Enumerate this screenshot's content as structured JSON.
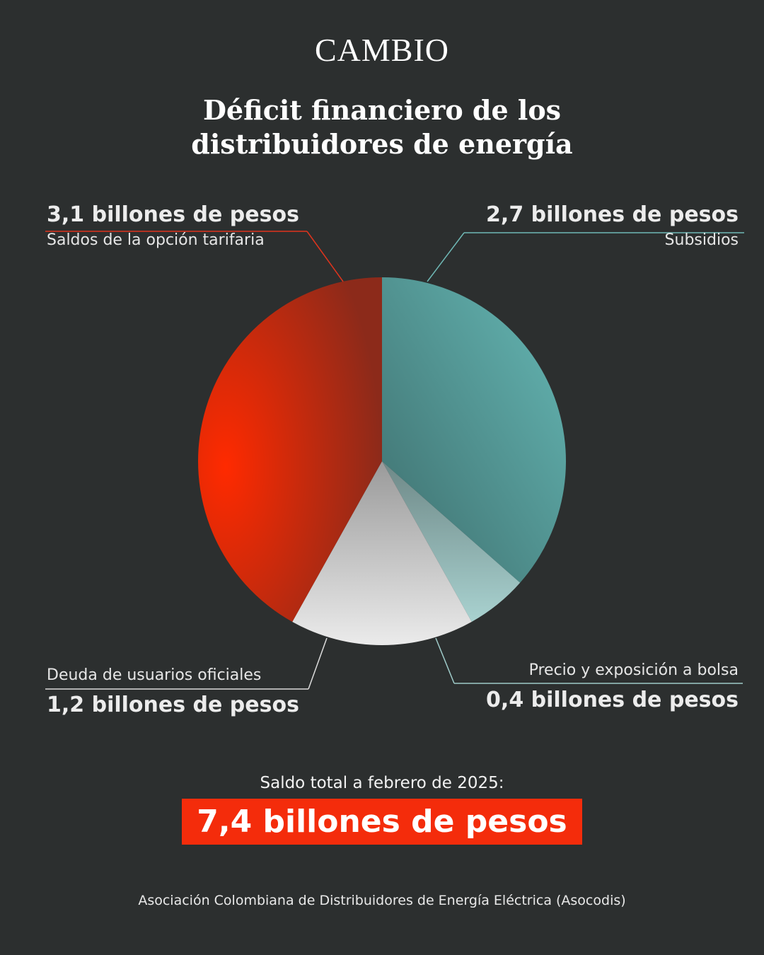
{
  "brand": "CAMBIO",
  "title_line1": "Déficit financiero de los",
  "title_line2": "distribuidores de energía",
  "chart_data": {
    "type": "pie",
    "unit": "billones de pesos",
    "slices": [
      {
        "label": "Subsidios",
        "value": 2.7,
        "value_label": "2,7 billones de pesos",
        "color": "#5eb0ad"
      },
      {
        "label": "Precio y exposición a bolsa",
        "value": 0.4,
        "value_label": "0,4 billones de pesos",
        "color": "#a6cfcd"
      },
      {
        "label": "Deuda de usuarios oficiales",
        "value": 1.2,
        "value_label": "1,2 billones de pesos",
        "color": "#e3e3e3"
      },
      {
        "label": "Saldos de la opción tarifaria",
        "value": 3.1,
        "value_label": "3,1 billones de pesos",
        "color": "#f02a08"
      }
    ]
  },
  "total": {
    "label": "Saldo total a febrero de 2025:",
    "value": "7,4 billones de pesos"
  },
  "source": "Asociación Colombiana de Distribuidores de Energía Eléctrica (Asocodis)"
}
